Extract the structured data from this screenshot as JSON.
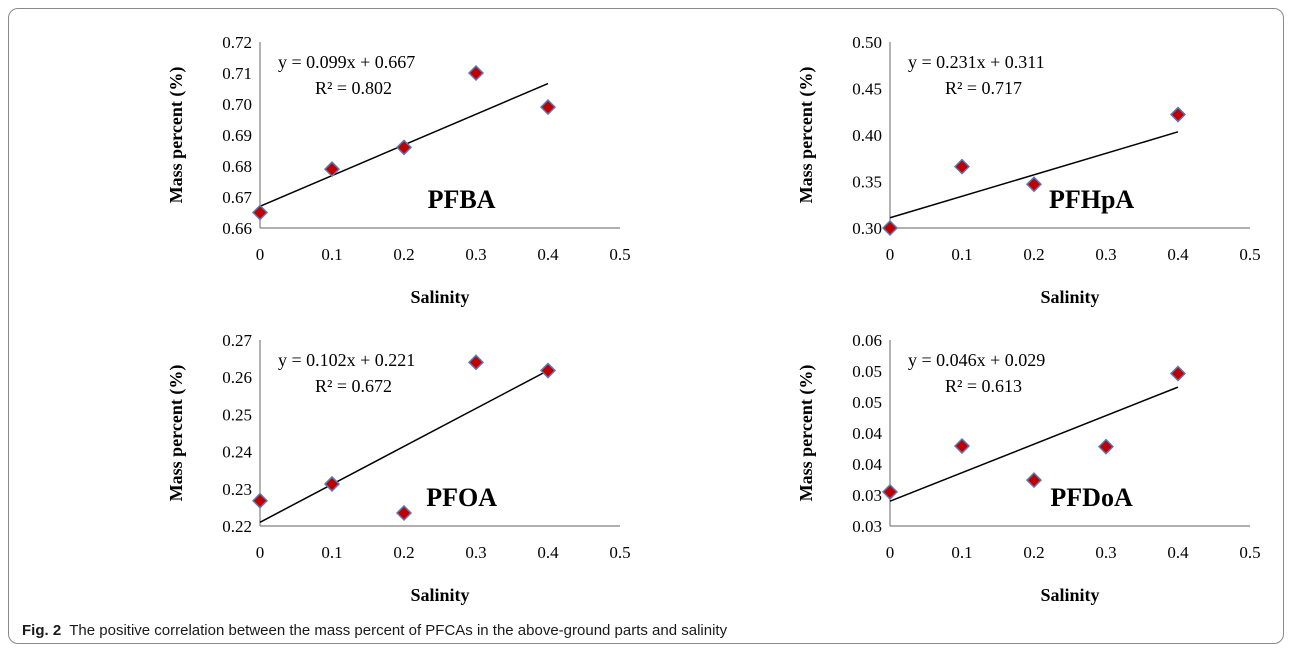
{
  "caption": {
    "label": "Fig. 2",
    "text": "The positive correlation between the mass percent of PFCAs in the above-ground parts and salinity"
  },
  "colors": {
    "marker_fill": "#c00000",
    "marker_stroke": "#5b79b8",
    "line": "#000000",
    "axis": "#808080"
  },
  "chart_data": [
    {
      "type": "scatter",
      "name": "PFBA",
      "xlabel": "Salinity",
      "ylabel": "Mass percent (%)",
      "xlim": [
        0,
        0.5
      ],
      "ylim": [
        0.66,
        0.72
      ],
      "xticks": [
        "0",
        "0.1",
        "0.2",
        "0.3",
        "0.4",
        "0.5"
      ],
      "yticks": [
        "0.66",
        "0.67",
        "0.68",
        "0.69",
        "0.70",
        "0.71",
        "0.72"
      ],
      "x": [
        0,
        0.1,
        0.2,
        0.3,
        0.4
      ],
      "y": [
        0.665,
        0.679,
        0.686,
        0.71,
        0.699
      ],
      "trendline": {
        "slope": 0.099,
        "intercept": 0.667,
        "x_range": [
          0,
          0.4
        ]
      },
      "equation": "y = 0.099x + 0.667",
      "r2": "R² = 0.802"
    },
    {
      "type": "scatter",
      "name": "PFHpA",
      "xlabel": "Salinity",
      "ylabel": "Mass percent (%)",
      "xlim": [
        0,
        0.5
      ],
      "ylim": [
        0.3,
        0.5
      ],
      "xticks": [
        "0",
        "0.1",
        "0.2",
        "0.3",
        "0.4",
        "0.5"
      ],
      "yticks": [
        "0.30",
        "0.35",
        "0.40",
        "0.45",
        "0.50"
      ],
      "x": [
        0,
        0.1,
        0.2,
        0.4
      ],
      "y": [
        0.3,
        0.366,
        0.347,
        0.422
      ],
      "trendline": {
        "slope": 0.231,
        "intercept": 0.311,
        "x_range": [
          0,
          0.4
        ]
      },
      "equation": "y = 0.231x + 0.311",
      "r2": "R² = 0.717"
    },
    {
      "type": "scatter",
      "name": "PFOA",
      "xlabel": "Salinity",
      "ylabel": "Mass percent (%)",
      "xlim": [
        0,
        0.5
      ],
      "ylim": [
        0.22,
        0.27
      ],
      "xticks": [
        "0",
        "0.1",
        "0.2",
        "0.3",
        "0.4",
        "0.5"
      ],
      "yticks": [
        "0.22",
        "0.23",
        "0.24",
        "0.25",
        "0.26",
        "0.27"
      ],
      "x": [
        0,
        0.1,
        0.2,
        0.3,
        0.4
      ],
      "y": [
        0.2268,
        0.2313,
        0.2235,
        0.264,
        0.2618
      ],
      "trendline": {
        "slope": 0.102,
        "intercept": 0.221,
        "x_range": [
          0,
          0.4
        ]
      },
      "equation": "y = 0.102x + 0.221",
      "r2": "R² = 0.672"
    },
    {
      "type": "scatter",
      "name": "PFDoA",
      "xlabel": "Salinity",
      "ylabel": "Mass percent (%)",
      "xlim": [
        0,
        0.5
      ],
      "ylim": [
        0.025,
        0.055
      ],
      "xticks": [
        "0",
        "0.1",
        "0.2",
        "0.3",
        "0.4",
        "0.5"
      ],
      "yticks": [
        "0.03",
        "0.03",
        "0.04",
        "0.04",
        "0.05",
        "0.05",
        "0.06"
      ],
      "x": [
        0,
        0.1,
        0.2,
        0.3,
        0.4
      ],
      "y": [
        0.0305,
        0.0379,
        0.0324,
        0.0378,
        0.0496
      ],
      "trendline": {
        "slope": 0.046,
        "intercept": 0.029,
        "x_range": [
          0,
          0.4
        ]
      },
      "equation": "y = 0.046x + 0.029",
      "r2": "R² = 0.613"
    }
  ]
}
